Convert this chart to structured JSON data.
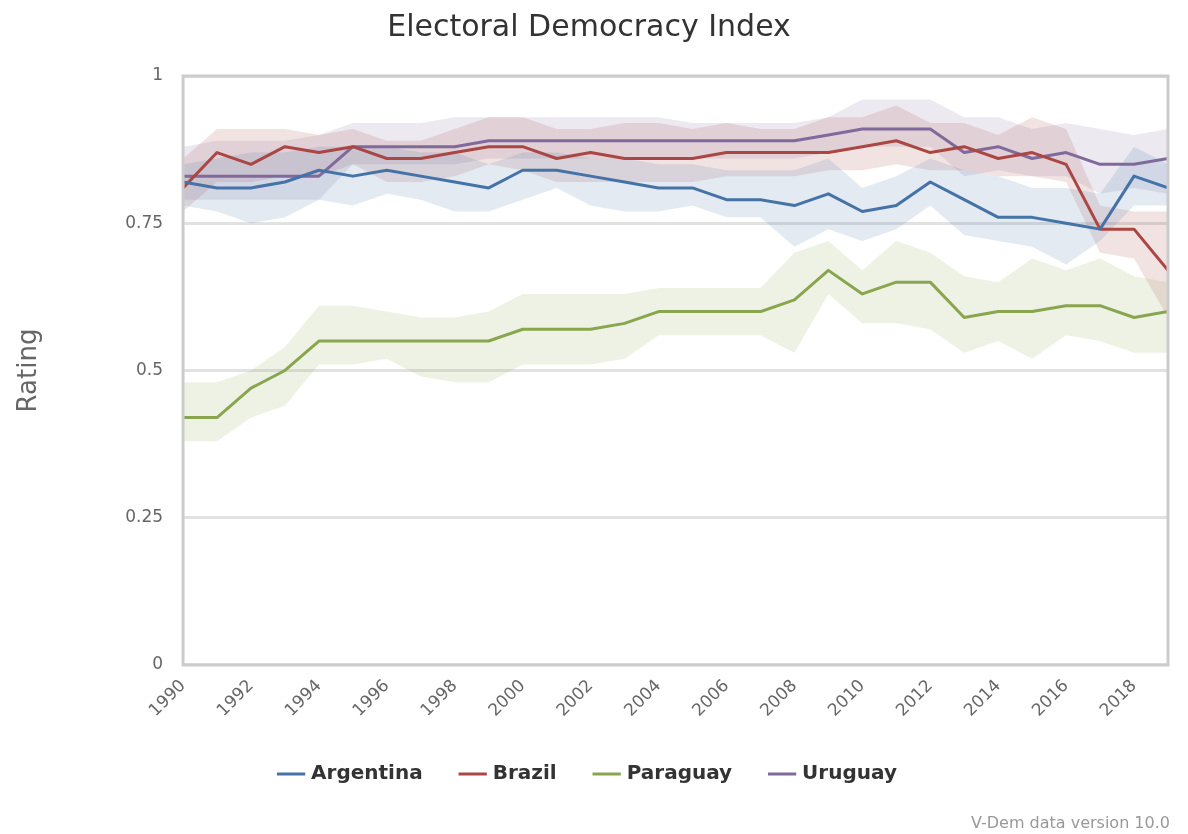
{
  "chart_data": {
    "type": "line",
    "title": "Electoral Democracy Index",
    "ylabel": "Rating",
    "x": [
      1990,
      1991,
      1992,
      1993,
      1994,
      1995,
      1996,
      1997,
      1998,
      1999,
      2000,
      2001,
      2002,
      2003,
      2004,
      2005,
      2006,
      2007,
      2008,
      2009,
      2010,
      2011,
      2012,
      2013,
      2014,
      2015,
      2016,
      2017,
      2018,
      2019
    ],
    "xlim": [
      1990,
      2019
    ],
    "xticks": [
      1990,
      1992,
      1994,
      1996,
      1998,
      2000,
      2002,
      2004,
      2006,
      2008,
      2010,
      2012,
      2014,
      2016,
      2018
    ],
    "ylim": [
      0,
      1
    ],
    "yticks": [
      0,
      0.25,
      0.5,
      0.75,
      1
    ],
    "grid": "y",
    "legend": "bottom",
    "marker": "none",
    "series": [
      {
        "name": "Argentina",
        "color": "#4572a7",
        "values": [
          0.82,
          0.81,
          0.81,
          0.82,
          0.84,
          0.83,
          0.84,
          0.83,
          0.82,
          0.81,
          0.84,
          0.84,
          0.83,
          0.82,
          0.81,
          0.81,
          0.79,
          0.79,
          0.78,
          0.8,
          0.77,
          0.78,
          0.82,
          0.79,
          0.76,
          0.76,
          0.75,
          0.74,
          0.83,
          0.81
        ],
        "upper": [
          0.85,
          0.86,
          0.87,
          0.87,
          0.88,
          0.88,
          0.88,
          0.87,
          0.87,
          0.85,
          0.87,
          0.87,
          0.86,
          0.86,
          0.85,
          0.85,
          0.84,
          0.84,
          0.84,
          0.86,
          0.81,
          0.83,
          0.86,
          0.84,
          0.83,
          0.81,
          0.81,
          0.8,
          0.88,
          0.85
        ],
        "lower": [
          0.78,
          0.77,
          0.75,
          0.76,
          0.79,
          0.78,
          0.8,
          0.79,
          0.77,
          0.77,
          0.79,
          0.81,
          0.78,
          0.77,
          0.77,
          0.78,
          0.76,
          0.76,
          0.71,
          0.74,
          0.72,
          0.74,
          0.78,
          0.73,
          0.72,
          0.71,
          0.68,
          0.72,
          0.78,
          0.78
        ]
      },
      {
        "name": "Brazil",
        "color": "#aa4643",
        "values": [
          0.81,
          0.87,
          0.85,
          0.88,
          0.87,
          0.88,
          0.86,
          0.86,
          0.87,
          0.88,
          0.88,
          0.86,
          0.87,
          0.86,
          0.86,
          0.86,
          0.87,
          0.87,
          0.87,
          0.87,
          0.88,
          0.89,
          0.87,
          0.88,
          0.86,
          0.87,
          0.85,
          0.74,
          0.74,
          0.67
        ],
        "upper": [
          0.86,
          0.91,
          0.91,
          0.91,
          0.9,
          0.91,
          0.89,
          0.89,
          0.91,
          0.93,
          0.93,
          0.91,
          0.91,
          0.92,
          0.92,
          0.91,
          0.92,
          0.91,
          0.91,
          0.93,
          0.93,
          0.95,
          0.92,
          0.92,
          0.9,
          0.93,
          0.91,
          0.78,
          0.77,
          0.77
        ],
        "lower": [
          0.77,
          0.82,
          0.82,
          0.83,
          0.83,
          0.85,
          0.82,
          0.82,
          0.83,
          0.85,
          0.84,
          0.82,
          0.82,
          0.82,
          0.82,
          0.82,
          0.83,
          0.83,
          0.83,
          0.84,
          0.84,
          0.85,
          0.84,
          0.84,
          0.83,
          0.83,
          0.82,
          0.7,
          0.69,
          0.59
        ]
      },
      {
        "name": "Paraguay",
        "color": "#89a54e",
        "values": [
          0.42,
          0.42,
          0.47,
          0.5,
          0.55,
          0.55,
          0.55,
          0.55,
          0.55,
          0.55,
          0.57,
          0.57,
          0.57,
          0.58,
          0.6,
          0.6,
          0.6,
          0.6,
          0.62,
          0.67,
          0.63,
          0.65,
          0.65,
          0.59,
          0.6,
          0.6,
          0.61,
          0.61,
          0.59,
          0.6
        ],
        "upper": [
          0.48,
          0.48,
          0.5,
          0.54,
          0.61,
          0.61,
          0.6,
          0.59,
          0.59,
          0.6,
          0.63,
          0.63,
          0.63,
          0.63,
          0.64,
          0.64,
          0.64,
          0.64,
          0.7,
          0.72,
          0.67,
          0.72,
          0.7,
          0.66,
          0.65,
          0.69,
          0.67,
          0.69,
          0.66,
          0.65
        ],
        "lower": [
          0.38,
          0.38,
          0.42,
          0.44,
          0.51,
          0.51,
          0.52,
          0.49,
          0.48,
          0.48,
          0.51,
          0.51,
          0.51,
          0.52,
          0.56,
          0.56,
          0.56,
          0.56,
          0.53,
          0.63,
          0.58,
          0.58,
          0.57,
          0.53,
          0.55,
          0.52,
          0.56,
          0.55,
          0.53,
          0.53
        ]
      },
      {
        "name": "Uruguay",
        "color": "#80699b",
        "values": [
          0.83,
          0.83,
          0.83,
          0.83,
          0.83,
          0.88,
          0.88,
          0.88,
          0.88,
          0.89,
          0.89,
          0.89,
          0.89,
          0.89,
          0.89,
          0.89,
          0.89,
          0.89,
          0.89,
          0.9,
          0.91,
          0.91,
          0.91,
          0.87,
          0.88,
          0.86,
          0.87,
          0.85,
          0.85,
          0.86
        ],
        "upper": [
          0.88,
          0.89,
          0.89,
          0.89,
          0.9,
          0.92,
          0.92,
          0.92,
          0.93,
          0.93,
          0.93,
          0.93,
          0.93,
          0.93,
          0.93,
          0.92,
          0.92,
          0.92,
          0.92,
          0.93,
          0.96,
          0.96,
          0.96,
          0.93,
          0.93,
          0.91,
          0.92,
          0.91,
          0.9,
          0.91
        ],
        "lower": [
          0.79,
          0.79,
          0.79,
          0.79,
          0.79,
          0.85,
          0.85,
          0.85,
          0.85,
          0.86,
          0.86,
          0.86,
          0.86,
          0.86,
          0.86,
          0.86,
          0.86,
          0.86,
          0.86,
          0.87,
          0.88,
          0.88,
          0.88,
          0.83,
          0.84,
          0.83,
          0.83,
          0.8,
          0.81,
          0.8
        ]
      }
    ],
    "annotations": [
      "V-Dem data version 10.0"
    ]
  }
}
